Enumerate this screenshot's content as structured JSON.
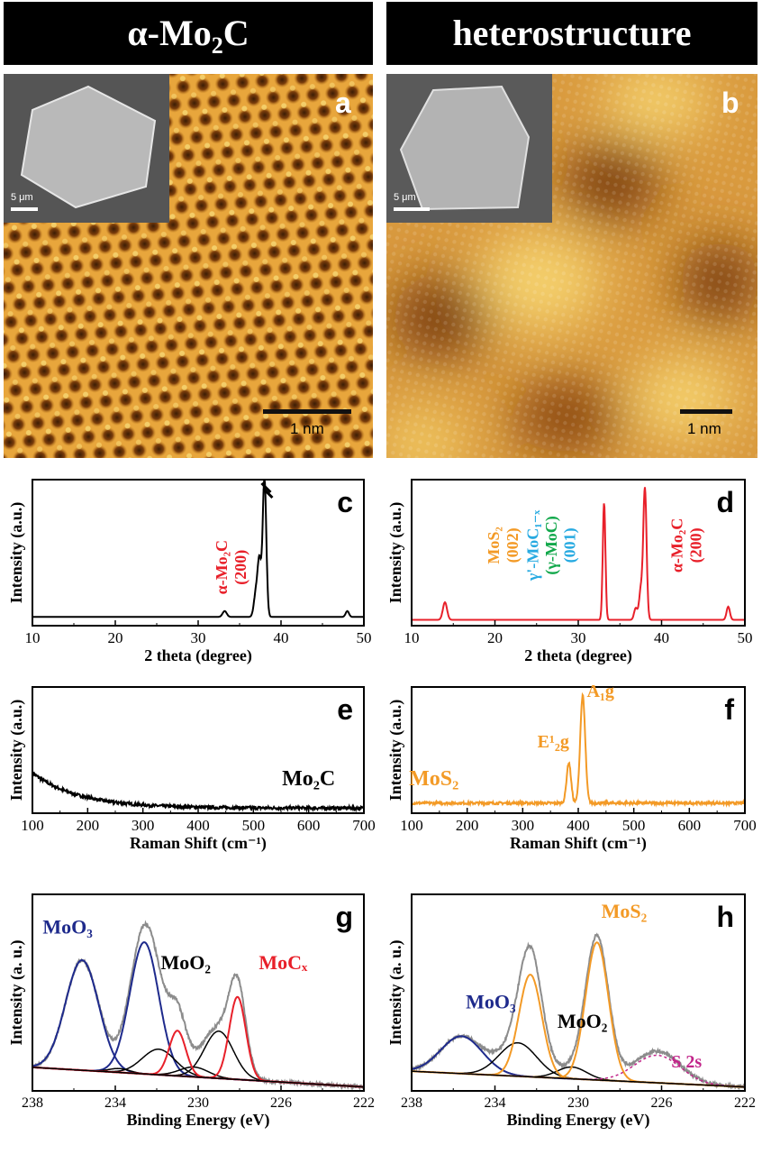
{
  "headers": {
    "left": {
      "prefix": "α-Mo",
      "sub": "2",
      "suffix": "C"
    },
    "right": "heterostructure"
  },
  "panels": {
    "a": {
      "label": "a",
      "scalebar": "1 nm",
      "inset_scalebar": "5 μm"
    },
    "b": {
      "label": "b",
      "scalebar": "1 nm",
      "inset_scalebar": "5 μm"
    }
  },
  "colors": {
    "black": "#000000",
    "red": "#e8202a",
    "orange": "#f39a26",
    "cyan": "#27aae1",
    "green": "#12a84b",
    "navy": "#1e2a8c",
    "gray": "#8c8c8c",
    "magenta": "#c2258a"
  },
  "chart_data": [
    {
      "id": "c",
      "type": "line",
      "label": "c",
      "xlabel": "2 theta (degree)",
      "ylabel": "Intensity (a.u.)",
      "xlim": [
        10,
        50
      ],
      "ylim": [
        0,
        100
      ],
      "xticks": [
        10,
        20,
        30,
        40,
        50
      ],
      "series": [
        {
          "color": "#000000",
          "baseline": 6,
          "peaks": [
            [
              33.2,
              4,
              0.25
            ],
            [
              37.0,
              18,
              0.25
            ],
            [
              37.4,
              35,
              0.2
            ],
            [
              38.0,
              95,
              0.22
            ],
            [
              48.0,
              4,
              0.2
            ]
          ]
        }
      ],
      "annotations": [
        {
          "lines": [
            "α-Mo₂C",
            "(200)"
          ],
          "x": 33.5,
          "y": 40,
          "rotate": -90,
          "color": "#e8202a"
        }
      ]
    },
    {
      "id": "d",
      "type": "line",
      "label": "d",
      "xlabel": "2 theta (degree)",
      "ylabel": "Intensity (a.u.)",
      "xlim": [
        10,
        50
      ],
      "ylim": [
        0,
        100
      ],
      "xticks": [
        10,
        20,
        30,
        40,
        50
      ],
      "series": [
        {
          "color": "#e8202a",
          "baseline": 4,
          "peaks": [
            [
              14.0,
              12,
              0.25
            ],
            [
              33.1,
              80,
              0.16
            ],
            [
              36.9,
              8,
              0.2
            ],
            [
              37.5,
              20,
              0.2
            ],
            [
              38.0,
              90,
              0.2
            ],
            [
              48.0,
              9,
              0.2
            ]
          ]
        }
      ],
      "annotations": [
        {
          "lines": [
            "MoS₂",
            "(002)"
          ],
          "x": 20.5,
          "y": 55,
          "rotate": -90,
          "color": "#f39a26"
        },
        {
          "lines": [
            "γ'-MoC₁₋ₓ"
          ],
          "x": 25.2,
          "y": 55,
          "rotate": -90,
          "color": "#27aae1"
        },
        {
          "lines": [
            "(γ-MoC)"
          ],
          "x": 27.4,
          "y": 55,
          "rotate": -90,
          "color": "#12a84b"
        },
        {
          "lines": [
            "(001)"
          ],
          "x": 29.6,
          "y": 55,
          "rotate": -90,
          "color": "#27aae1"
        },
        {
          "lines": [
            "α-Mo₂C",
            "(200)"
          ],
          "x": 42.5,
          "y": 55,
          "rotate": -90,
          "color": "#e8202a"
        }
      ]
    },
    {
      "id": "e",
      "type": "line",
      "label": "e",
      "xlabel": "Raman Shift (cm⁻¹)",
      "ylabel": "Intensity (a.u.)",
      "xlim": [
        100,
        700
      ],
      "ylim": [
        0,
        100
      ],
      "xticks": [
        100,
        200,
        300,
        400,
        500,
        600,
        700
      ],
      "series": [
        {
          "color": "#000000",
          "decay": {
            "start": 32,
            "end": 4,
            "rate": 0.012
          },
          "noise": 1.2,
          "peaks": []
        }
      ],
      "annotations": [
        {
          "lines": [
            "Mo₂C"
          ],
          "x": 600,
          "y": 22,
          "rotate": 0,
          "color": "#000000",
          "size": 24
        }
      ]
    },
    {
      "id": "f",
      "type": "line",
      "label": "f",
      "xlabel": "Raman Shift (cm⁻¹)",
      "ylabel": "Intensity (a.u.)",
      "xlim": [
        100,
        700
      ],
      "ylim": [
        0,
        100
      ],
      "xticks": [
        100,
        200,
        300,
        400,
        500,
        600,
        700
      ],
      "series": [
        {
          "color": "#f39a26",
          "baseline": 8,
          "noise": 1.0,
          "peaks": [
            [
              383,
              32,
              4
            ],
            [
              408,
              85,
              4.5
            ]
          ]
        }
      ],
      "annotations": [
        {
          "lines": [
            "MoS₂"
          ],
          "x": 140,
          "y": 22,
          "rotate": 0,
          "color": "#f39a26",
          "size": 24
        },
        {
          "lines": [
            "E¹₂g"
          ],
          "x": 355,
          "y": 52,
          "rotate": 0,
          "color": "#f39a26",
          "size": 20
        },
        {
          "lines": [
            "A₁g"
          ],
          "x": 440,
          "y": 92,
          "rotate": 0,
          "color": "#f39a26",
          "size": 20
        }
      ]
    },
    {
      "id": "g",
      "type": "line",
      "label": "g",
      "xlabel": "Binding Energy (eV)",
      "ylabel": "Intensity (a. u.)",
      "xlim": [
        238,
        222
      ],
      "ylim": [
        0,
        100
      ],
      "xticks": [
        238,
        234,
        230,
        226,
        222
      ],
      "series": [
        {
          "name": "envelope",
          "color": "#8c8c8c",
          "width": 2,
          "noise": 0.8,
          "baseline_line": [
            [
              238,
              12
            ],
            [
              222,
              2
            ]
          ],
          "peaks": [
            [
              235.6,
              56,
              0.8
            ],
            [
              232.6,
              67,
              0.7
            ],
            [
              231.9,
              13,
              0.8
            ],
            [
              231.0,
              23,
              0.4
            ],
            [
              230.2,
              5,
              0.7
            ],
            [
              229.0,
              24,
              0.7
            ],
            [
              228.1,
              42,
              0.4
            ]
          ]
        },
        {
          "name": "MoO3-a",
          "color": "#1e2a8c",
          "width": 2,
          "baseline_line": [
            [
              238,
              12
            ],
            [
              222,
              2
            ]
          ],
          "peaks": [
            [
              235.6,
              56,
              0.8
            ]
          ]
        },
        {
          "name": "MoO3-b",
          "color": "#1e2a8c",
          "width": 2,
          "baseline_line": [
            [
              238,
              12
            ],
            [
              222,
              2
            ]
          ],
          "peaks": [
            [
              232.6,
              67,
              0.7
            ]
          ]
        },
        {
          "name": "MoO2-a",
          "color": "#000000",
          "width": 1.5,
          "baseline_line": [
            [
              238,
              12
            ],
            [
              222,
              2
            ]
          ],
          "peaks": [
            [
              231.9,
              13,
              0.8
            ]
          ]
        },
        {
          "name": "MoO2-b",
          "color": "#000000",
          "width": 1.5,
          "baseline_line": [
            [
              238,
              12
            ],
            [
              222,
              2
            ]
          ],
          "peaks": [
            [
              229.0,
              24,
              0.7
            ]
          ]
        },
        {
          "name": "MoO2-c",
          "color": "#000000",
          "width": 1.5,
          "baseline_line": [
            [
              238,
              12
            ],
            [
              222,
              2
            ]
          ],
          "peaks": [
            [
              233.8,
              2,
              0.5
            ],
            [
              230.2,
              5,
              0.7
            ]
          ]
        },
        {
          "name": "MoCx-a",
          "color": "#e8202a",
          "width": 2,
          "baseline_line": [
            [
              238,
              12
            ],
            [
              222,
              2
            ]
          ],
          "peaks": [
            [
              231.0,
              23,
              0.4
            ]
          ]
        },
        {
          "name": "MoCx-b",
          "color": "#e8202a",
          "width": 2,
          "baseline_line": [
            [
              238,
              12
            ],
            [
              222,
              2
            ]
          ],
          "peaks": [
            [
              228.1,
              42,
              0.4
            ]
          ]
        },
        {
          "name": "baseline",
          "color": "#000000",
          "width": 1.5,
          "baseline_line": [
            [
              238,
              12
            ],
            [
              222,
              2
            ]
          ],
          "peaks": []
        }
      ],
      "annotations": [
        {
          "lines": [
            "MoO₃"
          ],
          "x": 236.3,
          "y": 80,
          "rotate": 0,
          "color": "#1e2a8c",
          "size": 22
        },
        {
          "lines": [
            "MoO₂"
          ],
          "x": 230.6,
          "y": 62,
          "rotate": 0,
          "color": "#000000",
          "size": 22
        },
        {
          "lines": [
            "MoCₓ"
          ],
          "x": 225.9,
          "y": 62,
          "rotate": 0,
          "color": "#e8202a",
          "size": 22
        }
      ]
    },
    {
      "id": "h",
      "type": "line",
      "label": "h",
      "xlabel": "Binding Energy (eV)",
      "ylabel": "Intensity (a. u.)",
      "xlim": [
        238,
        222
      ],
      "ylim": [
        0,
        100
      ],
      "xticks": [
        238,
        234,
        230,
        226,
        222
      ],
      "series": [
        {
          "name": "envelope",
          "color": "#8c8c8c",
          "width": 2,
          "noise": 0.7,
          "baseline_line": [
            [
              238,
              10
            ],
            [
              222,
              2
            ]
          ],
          "peaks": [
            [
              235.6,
              19,
              1.0
            ],
            [
              232.9,
              14,
              0.9
            ],
            [
              232.3,
              55,
              0.55
            ],
            [
              230.3,
              5,
              0.7
            ],
            [
              229.1,
              72,
              0.55
            ],
            [
              226.2,
              16,
              1.1
            ]
          ]
        },
        {
          "name": "MoO3",
          "color": "#1e2a8c",
          "width": 2,
          "baseline_line": [
            [
              238,
              10
            ],
            [
              222,
              2
            ]
          ],
          "peaks": [
            [
              235.6,
              19,
              1.0
            ]
          ]
        },
        {
          "name": "MoO2-a",
          "color": "#000000",
          "width": 1.5,
          "baseline_line": [
            [
              238,
              10
            ],
            [
              222,
              2
            ]
          ],
          "peaks": [
            [
              232.9,
              17,
              0.9
            ]
          ]
        },
        {
          "name": "MoO2-b",
          "color": "#000000",
          "width": 1.5,
          "baseline_line": [
            [
              238,
              10
            ],
            [
              222,
              2
            ]
          ],
          "peaks": [
            [
              230.3,
              6,
              0.7
            ]
          ]
        },
        {
          "name": "MoS2-a",
          "color": "#f39a26",
          "width": 2,
          "baseline_line": [
            [
              238,
              10
            ],
            [
              222,
              2
            ]
          ],
          "peaks": [
            [
              232.3,
              52,
              0.55
            ]
          ]
        },
        {
          "name": "MoS2-b",
          "color": "#f39a26",
          "width": 2,
          "baseline_line": [
            [
              238,
              10
            ],
            [
              222,
              2
            ]
          ],
          "peaks": [
            [
              229.1,
              70,
              0.55
            ]
          ]
        },
        {
          "name": "S2s",
          "color": "#c2258a",
          "width": 1.5,
          "dashed": true,
          "baseline_line": [
            [
              238,
              10
            ],
            [
              222,
              2
            ]
          ],
          "peaks": [
            [
              226.2,
              14,
              1.1
            ]
          ]
        },
        {
          "name": "baseline",
          "color": "#000000",
          "width": 1.5,
          "baseline_line": [
            [
              238,
              10
            ],
            [
              222,
              2
            ]
          ],
          "peaks": []
        }
      ],
      "annotations": [
        {
          "lines": [
            "MoO₃"
          ],
          "x": 234.2,
          "y": 42,
          "rotate": 0,
          "color": "#1e2a8c",
          "size": 22
        },
        {
          "lines": [
            "MoO₂"
          ],
          "x": 229.8,
          "y": 32,
          "rotate": 0,
          "color": "#000000",
          "size": 22
        },
        {
          "lines": [
            "MoS₂"
          ],
          "x": 227.8,
          "y": 88,
          "rotate": 0,
          "color": "#f39a26",
          "size": 22
        },
        {
          "lines": [
            "S 2s"
          ],
          "x": 224.8,
          "y": 12,
          "rotate": 0,
          "color": "#c2258a",
          "size": 20
        }
      ]
    }
  ]
}
